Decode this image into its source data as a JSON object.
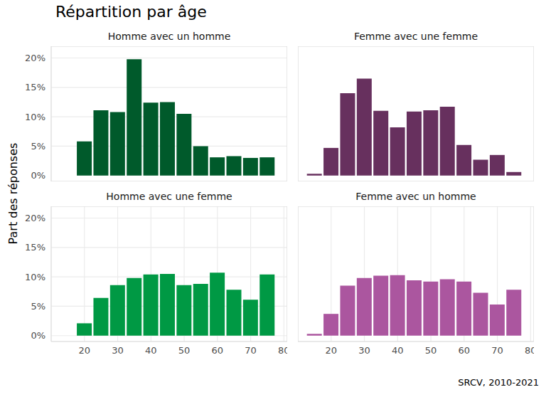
{
  "title": "Répartition par âge",
  "y_label": "Part des réponses",
  "caption": "SRCV, 2010-2021",
  "chart_data": [
    {
      "type": "bar",
      "title": "Homme avec un homme",
      "bins": [
        12.5,
        17.5,
        22.5,
        27.5,
        32.5,
        37.5,
        42.5,
        47.5,
        52.5,
        57.5,
        62.5,
        67.5,
        72.5,
        77.5
      ],
      "values": [
        0,
        5.8,
        11.1,
        10.8,
        19.8,
        12.4,
        12.5,
        10.5,
        5.0,
        3.1,
        3.3,
        3.0,
        3.1
      ],
      "color": "#005a2b",
      "xlim": [
        10,
        81
      ],
      "ylim": [
        -1,
        22
      ],
      "xticks": [
        20,
        30,
        40,
        50,
        60,
        70,
        80
      ],
      "yticks": [
        {
          "value": 0,
          "label": "0%"
        },
        {
          "value": 5,
          "label": "5%"
        },
        {
          "value": 10,
          "label": "10%"
        },
        {
          "value": 15,
          "label": "15%"
        },
        {
          "value": 20,
          "label": "20%"
        }
      ],
      "grid": true,
      "tick_labels": "y"
    },
    {
      "type": "bar",
      "title": "Femme avec une femme",
      "bins": [
        12.5,
        17.5,
        22.5,
        27.5,
        32.5,
        37.5,
        42.5,
        47.5,
        52.5,
        57.5,
        62.5,
        67.5,
        72.5,
        77.5
      ],
      "values": [
        0.3,
        4.7,
        14.0,
        16.5,
        11.0,
        8.2,
        10.9,
        11.1,
        11.7,
        5.2,
        2.7,
        3.5,
        0.6
      ],
      "color": "#67305e",
      "xlim": [
        10,
        81
      ],
      "ylim": [
        -1,
        22
      ],
      "xticks": [
        20,
        30,
        40,
        50,
        60,
        70,
        80
      ],
      "yticks": [
        {
          "value": 0,
          "label": "0%"
        },
        {
          "value": 5,
          "label": "5%"
        },
        {
          "value": 10,
          "label": "10%"
        },
        {
          "value": 15,
          "label": "15%"
        },
        {
          "value": 20,
          "label": "20%"
        }
      ],
      "grid": true,
      "tick_labels": false
    },
    {
      "type": "bar",
      "title": "Homme avec une femme",
      "bins": [
        12.5,
        17.5,
        22.5,
        27.5,
        32.5,
        37.5,
        42.5,
        47.5,
        52.5,
        57.5,
        62.5,
        67.5,
        72.5,
        77.5
      ],
      "values": [
        0,
        2.1,
        6.4,
        8.6,
        9.8,
        10.4,
        10.5,
        8.6,
        8.8,
        10.7,
        7.8,
        6.1,
        10.4
      ],
      "color": "#009944",
      "xlim": [
        10,
        81
      ],
      "ylim": [
        -1,
        22
      ],
      "xticks": [
        20,
        30,
        40,
        50,
        60,
        70,
        80
      ],
      "yticks": [
        {
          "value": 0,
          "label": "0%"
        },
        {
          "value": 5,
          "label": "5%"
        },
        {
          "value": 10,
          "label": "10%"
        },
        {
          "value": 15,
          "label": "15%"
        },
        {
          "value": 20,
          "label": "20%"
        }
      ],
      "grid": true,
      "tick_labels": true
    },
    {
      "type": "bar",
      "title": "Femme avec un homme",
      "bins": [
        12.5,
        17.5,
        22.5,
        27.5,
        32.5,
        37.5,
        42.5,
        47.5,
        52.5,
        57.5,
        62.5,
        67.5,
        72.5,
        77.5
      ],
      "values": [
        0.3,
        3.7,
        8.5,
        9.8,
        10.2,
        10.3,
        9.4,
        9.2,
        9.6,
        9.2,
        7.3,
        5.3,
        7.8
      ],
      "color": "#ab569f",
      "xlim": [
        10,
        81
      ],
      "ylim": [
        -1,
        22
      ],
      "xticks": [
        20,
        30,
        40,
        50,
        60,
        70,
        80
      ],
      "yticks": [
        {
          "value": 0,
          "label": "0%"
        },
        {
          "value": 5,
          "label": "5%"
        },
        {
          "value": 10,
          "label": "10%"
        },
        {
          "value": 15,
          "label": "15%"
        },
        {
          "value": 20,
          "label": "20%"
        }
      ],
      "grid": true,
      "tick_labels": "x"
    }
  ]
}
